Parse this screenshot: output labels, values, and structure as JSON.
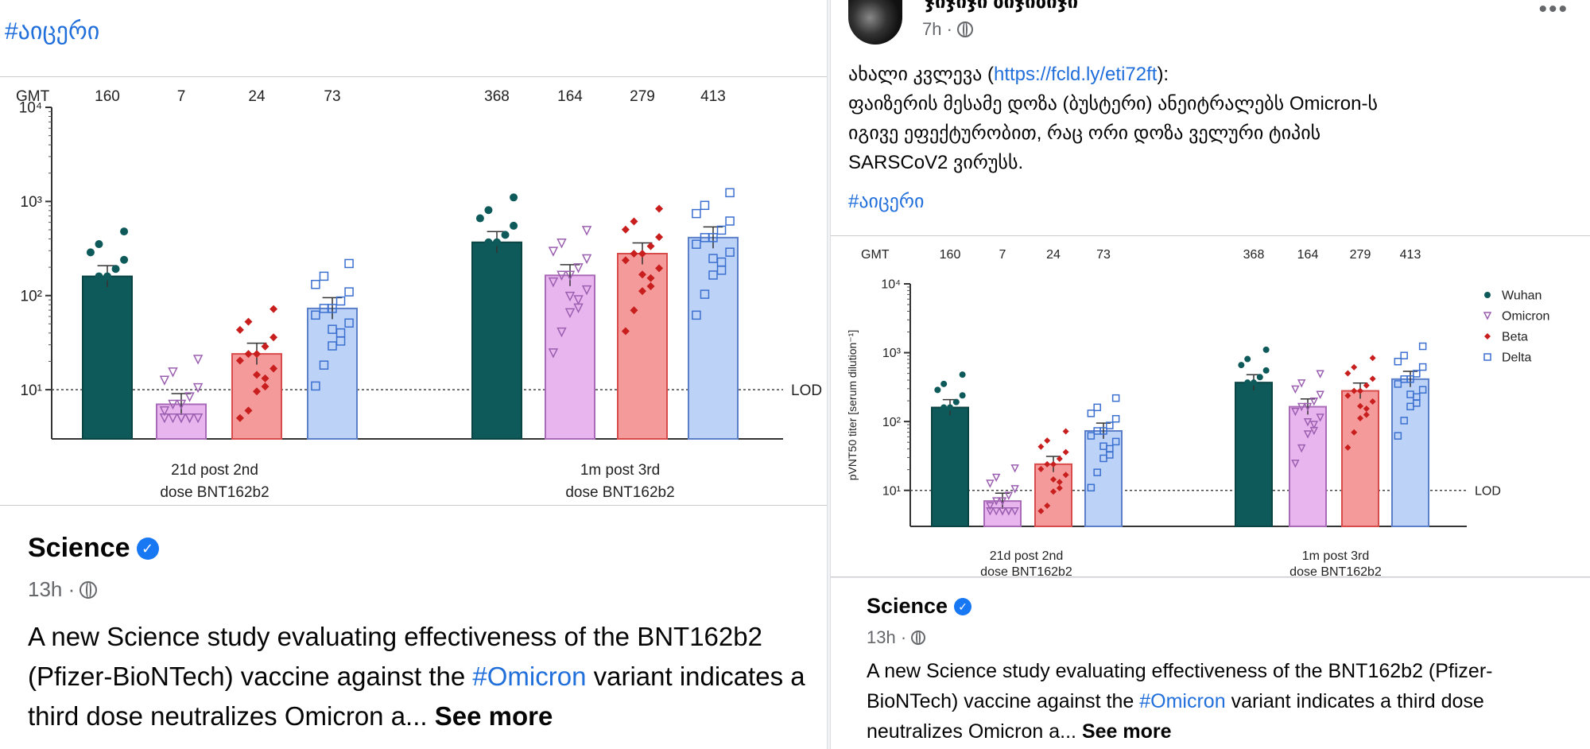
{
  "left_post": {
    "hashtag": "#აიცერი",
    "chart_image": {
      "gmt_label": "GMT",
      "gmt_values": [
        "160",
        "7",
        "24",
        "73",
        "368",
        "164",
        "279",
        "413"
      ],
      "y_ticks": [
        "10¹",
        "10²",
        "10³",
        "10⁴"
      ],
      "lod_label": "LOD",
      "group1_line1": "21d post 2nd",
      "group1_line2": "dose BNT162b2",
      "group2_line1": "1m post 3rd",
      "group2_line2": "dose BNT162b2"
    },
    "shared": {
      "name": "Science",
      "time": "13h ·",
      "text_a": "A new Science study evaluating effectiveness of the BNT162b2 (Pfizer-BioNTech) vaccine against the ",
      "hashtag": "#Omicron",
      "text_b": " variant indicates a third dose neutralizes Omicron a... ",
      "see_more": "See more"
    }
  },
  "right_post": {
    "author_name": "ჯიჯიჯი ბიჯიბიჯი",
    "time": "7h ·",
    "body_line1_a": "ახალი კვლევა (",
    "link": "https://fcld.ly/eti72ft",
    "body_line1_b": "):",
    "body_line2": "ფაიზერის მესამე დოზა (ბუსტერი) ანეიტრალებს Omicron-ს",
    "body_line3": "იგივე ეფექტურობით, რაც ორი დოზა ველური ტიპის",
    "body_line4": "SARSCoV2 ვირუსს.",
    "hashtag": "#აიცერი",
    "chart_image": {
      "gmt_label": "GMT",
      "gmt_values": [
        "160",
        "7",
        "24",
        "73",
        "368",
        "164",
        "279",
        "413"
      ],
      "y_ticks": [
        "10¹",
        "10²",
        "10³",
        "10⁴"
      ],
      "y_axis_label": "pVNT50 titer [serum dilution⁻¹]",
      "lod_label": "LOD",
      "legend": [
        "Wuhan",
        "Omicron",
        "Beta",
        "Delta"
      ],
      "group1_line1": "21d post 2nd",
      "group1_line2": "dose BNT162b2",
      "group2_line1": "1m post 3rd",
      "group2_line2": "dose BNT162b2"
    },
    "shared": {
      "name": "Science",
      "time": "13h ·",
      "text_a": "A new Science study evaluating effectiveness of the BNT162b2 (Pfizer-BioNTech) vaccine against the ",
      "hashtag": "#Omicron",
      "text_b": " variant indicates a third dose neutralizes Omicron a... ",
      "see_more": "See more"
    }
  },
  "colors": {
    "wuhan": "#0e5a5a",
    "omicron": "#e9b5ee",
    "beta": "#f49a9a",
    "delta": "#bcd3f7",
    "link": "#216fdb"
  },
  "chart_data": {
    "type": "bar",
    "categories": [
      "21d post 2nd dose BNT162b2",
      "1m post 3rd dose BNT162b2"
    ],
    "series": [
      {
        "name": "Wuhan",
        "values": [
          160,
          368
        ]
      },
      {
        "name": "Omicron",
        "values": [
          7,
          164
        ]
      },
      {
        "name": "Beta",
        "values": [
          24,
          279
        ]
      },
      {
        "name": "Delta",
        "values": [
          73,
          413
        ]
      }
    ],
    "ylabel": "pVNT50 titer [serum dilution-1]",
    "yscale": "log",
    "ylim": [
      3,
      10000
    ],
    "lod": 10,
    "legend_position": "top-right"
  }
}
